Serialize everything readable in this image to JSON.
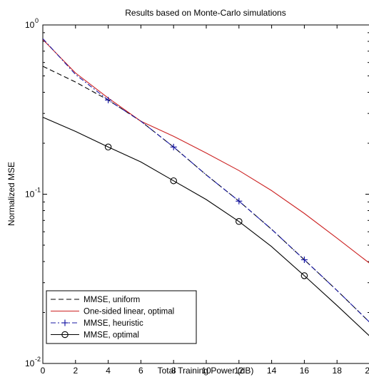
{
  "chart_data": {
    "type": "line",
    "title": "Results based on Monte-Carlo simulations",
    "xlabel": "Total Training Power (dB)",
    "ylabel": "Normalized MSE",
    "xlim": [
      0,
      20
    ],
    "ylim": [
      0.01,
      1
    ],
    "yscale": "log",
    "grid": false,
    "legend_position": "bottom-left",
    "x_ticks": [
      0,
      2,
      4,
      6,
      8,
      10,
      12,
      14,
      16,
      18,
      20
    ],
    "x_tick_labels": [
      "0",
      "2",
      "4",
      "6",
      "8",
      "10",
      "12",
      "14",
      "16",
      "18",
      "20"
    ],
    "y_ticks": [
      {
        "value": 1,
        "base": "10",
        "exp": "0"
      },
      {
        "value": 0.1,
        "base": "10",
        "exp": "-1"
      },
      {
        "value": 0.01,
        "base": "10",
        "exp": "-2"
      }
    ],
    "x": [
      0,
      2,
      4,
      6,
      8,
      10,
      12,
      14,
      16,
      18,
      20
    ],
    "series": [
      {
        "name": "MMSE, uniform",
        "color": "#000000",
        "dash": "dashed",
        "marker": "none",
        "values": [
          0.57,
          0.46,
          0.36,
          0.27,
          0.19,
          0.13,
          0.091,
          0.062,
          0.041,
          0.027,
          0.0175
        ]
      },
      {
        "name": "One-sided linear, optimal",
        "color": "#cc2222",
        "dash": "solid",
        "marker": "none",
        "values": [
          0.82,
          0.52,
          0.37,
          0.27,
          0.22,
          0.175,
          0.138,
          0.105,
          0.077,
          0.055,
          0.039
        ]
      },
      {
        "name": "MMSE, heuristic",
        "color": "#1a1aa6",
        "dash": "dashdot",
        "marker": "plus",
        "marker_x": [
          4,
          8,
          12,
          16
        ],
        "values": [
          0.83,
          0.51,
          0.36,
          0.27,
          0.19,
          0.13,
          0.091,
          0.062,
          0.041,
          0.027,
          0.0175
        ]
      },
      {
        "name": "MMSE, optimal",
        "color": "#000000",
        "dash": "solid",
        "marker": "circle",
        "marker_x": [
          4,
          8,
          12,
          16
        ],
        "values": [
          0.285,
          0.235,
          0.19,
          0.155,
          0.12,
          0.093,
          0.069,
          0.049,
          0.033,
          0.022,
          0.0145
        ]
      }
    ]
  }
}
